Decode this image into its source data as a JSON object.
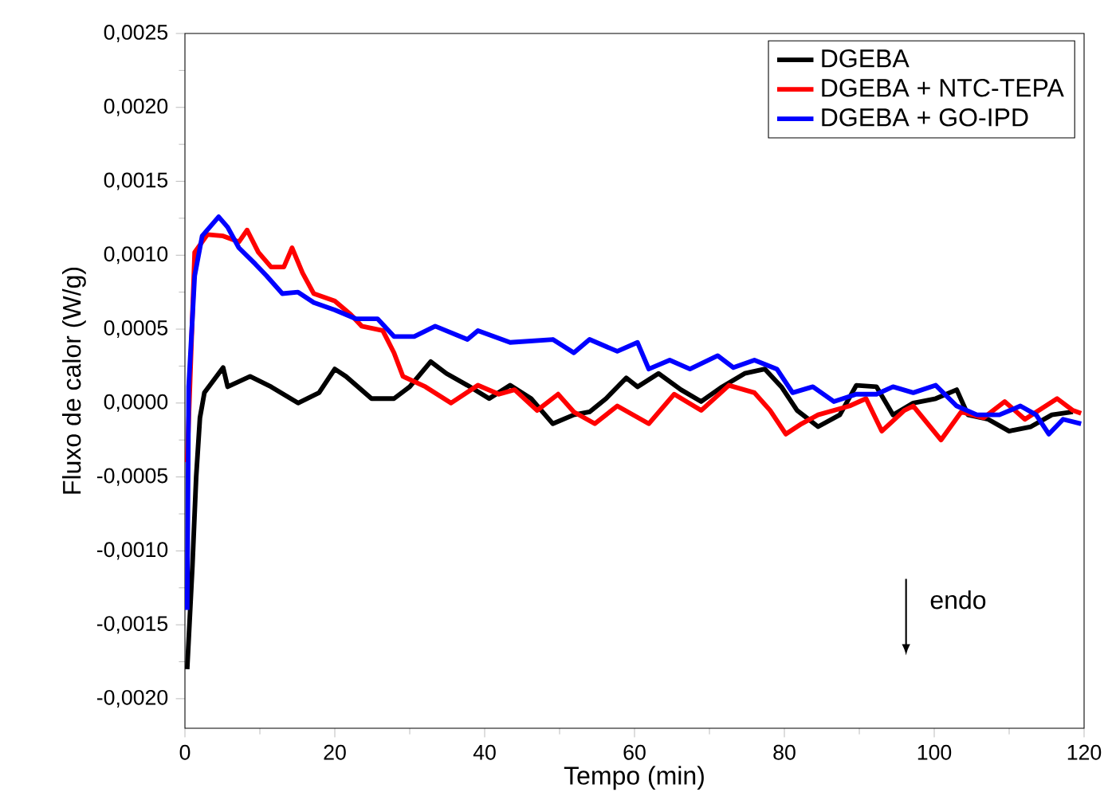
{
  "chart_data": {
    "type": "line",
    "xlabel": "Tempo (min)",
    "ylabel": "Fluxo de calor (W/g)",
    "xlim": [
      0,
      120
    ],
    "xticks": [
      0,
      20,
      40,
      60,
      80,
      100,
      120
    ],
    "ylim": [
      -0.0022,
      0.0025
    ],
    "yticks": [
      {
        "value": -0.002,
        "label": "-0,0020"
      },
      {
        "value": -0.0015,
        "label": "-0,0015"
      },
      {
        "value": -0.001,
        "label": "-0,0010"
      },
      {
        "value": -0.0005,
        "label": "-0,0005"
      },
      {
        "value": 0,
        "label": "0,0000"
      },
      {
        "value": 0.0005,
        "label": "0,0005"
      },
      {
        "value": 0.001,
        "label": "0,0010"
      },
      {
        "value": 0.0015,
        "label": "0,0015"
      },
      {
        "value": 0.002,
        "label": "0,0020"
      },
      {
        "value": 0.0025,
        "label": "0,0025"
      }
    ],
    "legend": "top right",
    "grid": false,
    "line_style": "solid",
    "marker": "none",
    "annotations": [
      "endo"
    ],
    "series": [
      {
        "name": "DGEBA",
        "color": "#000000",
        "x": [
          0.3,
          1,
          1.5,
          2,
          2.6,
          5.1,
          5.7,
          8.7,
          11.5,
          15.1,
          17.9,
          20,
          21.5,
          24.9,
          27.9,
          30,
          32.8,
          34.9,
          37.7,
          40.6,
          43.4,
          46.2,
          49.1,
          51.9,
          54,
          56.2,
          58.9,
          60.4,
          63.2,
          66.2,
          68.9,
          71.7,
          74.7,
          77.4,
          79.6,
          81.7,
          84.5,
          87.4,
          89.6,
          92.3,
          94.5,
          97.2,
          100.2,
          103,
          104.5,
          107.2,
          110,
          112.9,
          115.7,
          118.5
        ],
        "values": [
          -0.0018,
          -0.0011,
          -0.0005,
          -0.0001,
          7e-05,
          0.00024,
          0.00011,
          0.00018,
          0.00011,
          0.0,
          7e-05,
          0.00023,
          0.00018,
          3e-05,
          3e-05,
          0.00011,
          0.00028,
          0.0002,
          0.00012,
          3e-05,
          0.00012,
          3e-05,
          -0.00014,
          -8e-05,
          -6e-05,
          3e-05,
          0.00017,
          0.00011,
          0.0002,
          9e-05,
          1e-05,
          0.00011,
          0.0002,
          0.00023,
          0.00011,
          -5e-05,
          -0.00016,
          -8e-05,
          0.00012,
          0.00011,
          -8e-05,
          0.0,
          3e-05,
          9e-05,
          -8e-05,
          -0.00011,
          -0.00019,
          -0.00016,
          -8e-05,
          -6e-05
        ]
      },
      {
        "name": "DGEBA + NTC-TEPA",
        "color": "#ff0000",
        "x": [
          0.3,
          1.3,
          3,
          5.1,
          7.2,
          8.3,
          9.8,
          11.5,
          13.2,
          14.3,
          15.7,
          17.2,
          20,
          22.1,
          23.6,
          26.4,
          27.9,
          29.1,
          32.1,
          35.5,
          39.1,
          41.9,
          44,
          47,
          49.8,
          51.9,
          54.7,
          57.7,
          61.9,
          65.3,
          68.9,
          72.6,
          76,
          78.1,
          80.2,
          82.3,
          84.5,
          88.7,
          90.9,
          93,
          96,
          97.2,
          100.9,
          103.6,
          106.6,
          109.4,
          112.1,
          116.4,
          118.5,
          119.6
        ],
        "values": [
          -0.0004,
          0.00102,
          0.00114,
          0.00113,
          0.00109,
          0.00117,
          0.00102,
          0.00092,
          0.00092,
          0.00105,
          0.00088,
          0.00074,
          0.00069,
          0.0006,
          0.00052,
          0.00049,
          0.00034,
          0.00018,
          0.00011,
          0.0,
          0.00012,
          6e-05,
          9e-05,
          -5e-05,
          6e-05,
          -6e-05,
          -0.00014,
          -2e-05,
          -0.00014,
          6e-05,
          -5e-05,
          0.00012,
          7e-05,
          -5e-05,
          -0.00021,
          -0.00014,
          -8e-05,
          -2e-05,
          3e-05,
          -0.00019,
          -5e-05,
          -2e-05,
          -0.00025,
          -6e-05,
          -0.0001,
          1e-05,
          -0.00011,
          3e-05,
          -5e-05,
          -7e-05
        ]
      },
      {
        "name": "DGEBA + GO-IPD",
        "color": "#0000ff",
        "x": [
          0.3,
          0.5,
          1.3,
          2.3,
          4.5,
          5.7,
          7.2,
          9.4,
          10.9,
          13,
          15.1,
          17.2,
          20,
          22.8,
          25.7,
          27.9,
          30.6,
          33.4,
          37.7,
          39.1,
          43.4,
          49.1,
          51.9,
          54,
          57.7,
          60.4,
          61.9,
          64.7,
          67.4,
          71.1,
          73.2,
          76,
          79,
          81.1,
          83.8,
          86.6,
          89.6,
          92.3,
          94.5,
          97.2,
          100.2,
          103,
          105.7,
          108.7,
          111.5,
          113.6,
          115.3,
          117.2,
          119.6
        ],
        "values": [
          -0.0014,
          0.00011,
          0.00086,
          0.00113,
          0.00126,
          0.00119,
          0.00105,
          0.00094,
          0.00086,
          0.00074,
          0.00075,
          0.00068,
          0.00063,
          0.00057,
          0.00057,
          0.00045,
          0.00045,
          0.00052,
          0.00043,
          0.00049,
          0.00041,
          0.00043,
          0.00034,
          0.00043,
          0.00035,
          0.00041,
          0.00023,
          0.00029,
          0.00023,
          0.00032,
          0.00024,
          0.00029,
          0.00023,
          7e-05,
          0.00011,
          1e-05,
          6e-05,
          6e-05,
          0.00011,
          7e-05,
          0.00012,
          -2e-05,
          -8e-05,
          -8e-05,
          -2e-05,
          -8e-05,
          -0.00021,
          -0.00011,
          -0.00014
        ]
      }
    ]
  }
}
